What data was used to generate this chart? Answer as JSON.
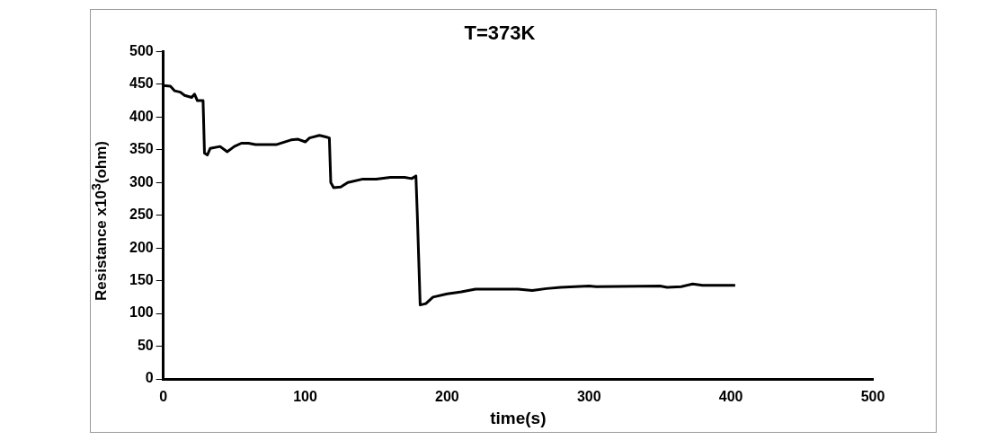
{
  "chart_data": {
    "type": "line",
    "title": "T=373K",
    "xlabel": "time(s)",
    "ylabel": "Resistance x10$^{3}$(ohm)",
    "series": [
      {
        "color": "#000000",
        "x": [
          0,
          5,
          8,
          12,
          15,
          20,
          22,
          24,
          28,
          29,
          31,
          33,
          40,
          45,
          50,
          55,
          60,
          65,
          80,
          90,
          95,
          100,
          103,
          110,
          114,
          117,
          118,
          120,
          125,
          130,
          140,
          150,
          160,
          170,
          175,
          178,
          179,
          181,
          185,
          190,
          200,
          210,
          220,
          250,
          260,
          270,
          280,
          300,
          305,
          350,
          355,
          365,
          373,
          380,
          403
        ],
        "values": [
          448,
          447,
          440,
          438,
          433,
          430,
          435,
          425,
          425,
          345,
          342,
          352,
          355,
          347,
          355,
          360,
          360,
          358,
          358,
          365,
          366,
          362,
          368,
          372,
          370,
          368,
          300,
          292,
          293,
          300,
          305,
          305,
          308,
          308,
          306,
          310,
          250,
          113,
          115,
          125,
          130,
          133,
          137,
          137,
          135,
          138,
          140,
          142,
          141,
          142,
          140,
          141,
          145,
          143,
          143
        ]
      }
    ],
    "xlim": [
      0,
      500
    ],
    "xticks": [
      0,
      100,
      200,
      300,
      400,
      500
    ],
    "ylim": [
      0,
      500
    ],
    "yticks": [
      0,
      50,
      100,
      150,
      200,
      250,
      300,
      350,
      400,
      450,
      500
    ],
    "grid": false,
    "legend": false,
    "marker": "none",
    "line_style": "solid"
  }
}
